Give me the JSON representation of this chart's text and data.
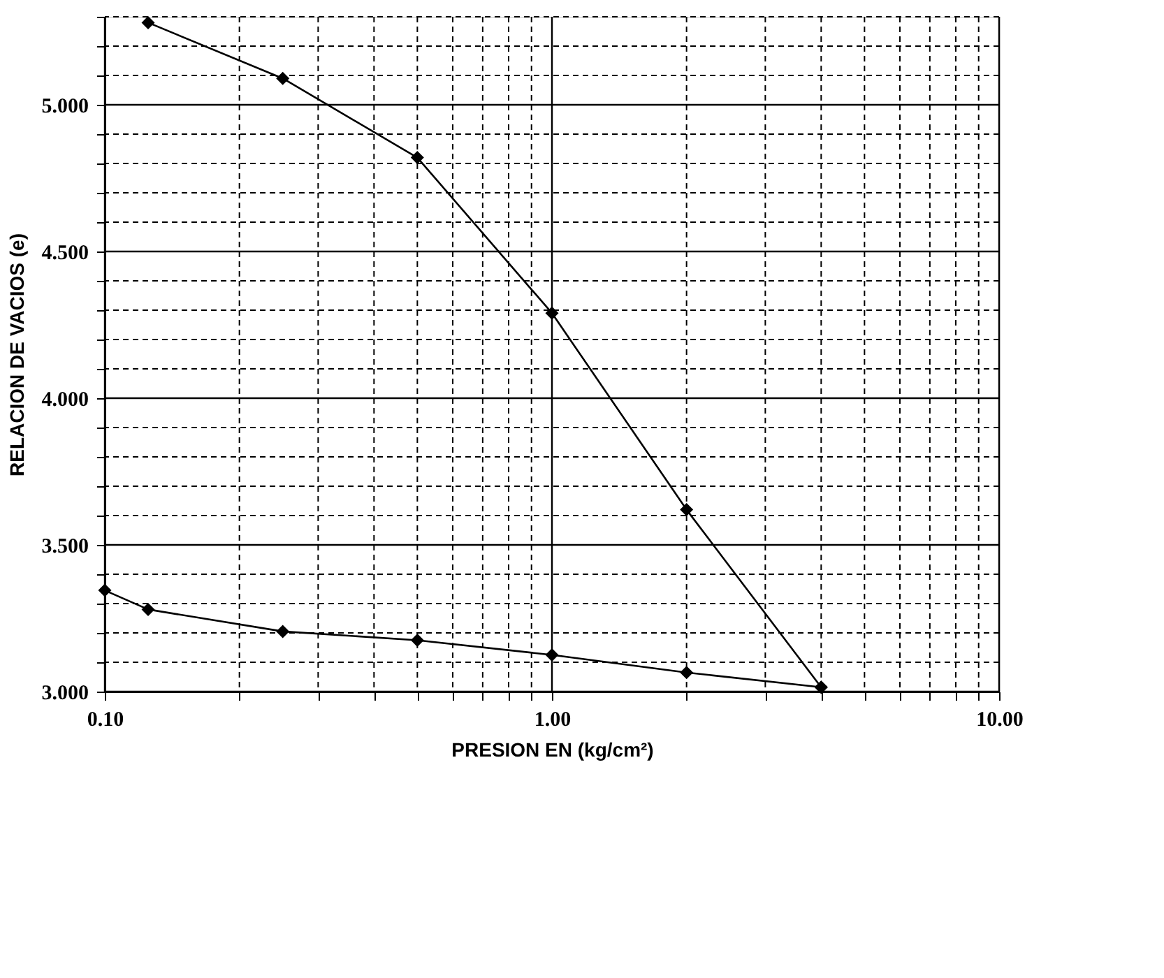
{
  "chart_data": {
    "type": "line",
    "xlabel": "PRESION EN (kg/cm²)",
    "ylabel": "RELACION DE VACIOS (e)",
    "log": "x",
    "marker": "diamond",
    "line_style": "solid",
    "grid": true,
    "xlim": [
      0.1,
      10
    ],
    "ylim": [
      3.0,
      5.3
    ],
    "xticks": [
      {
        "value": 0.1,
        "label": "0.10"
      },
      {
        "value": 0.2,
        "label": null
      },
      {
        "value": 0.3,
        "label": null
      },
      {
        "value": 0.4,
        "label": null
      },
      {
        "value": 0.5,
        "label": null
      },
      {
        "value": 0.6,
        "label": null
      },
      {
        "value": 0.7,
        "label": null
      },
      {
        "value": 0.8,
        "label": null
      },
      {
        "value": 0.9,
        "label": null
      },
      {
        "value": 1,
        "label": "1.00"
      },
      {
        "value": 2,
        "label": null
      },
      {
        "value": 3,
        "label": null
      },
      {
        "value": 4,
        "label": null
      },
      {
        "value": 5,
        "label": null
      },
      {
        "value": 6,
        "label": null
      },
      {
        "value": 7,
        "label": null
      },
      {
        "value": 8,
        "label": null
      },
      {
        "value": 9,
        "label": null
      },
      {
        "value": 10,
        "label": "10.00"
      }
    ],
    "yticks": [
      {
        "value": 3.0,
        "label": "3.000"
      },
      {
        "value": 3.1,
        "label": null
      },
      {
        "value": 3.2,
        "label": null
      },
      {
        "value": 3.3,
        "label": null
      },
      {
        "value": 3.4,
        "label": null
      },
      {
        "value": 3.5,
        "label": "3.500"
      },
      {
        "value": 3.6,
        "label": null
      },
      {
        "value": 3.7,
        "label": null
      },
      {
        "value": 3.8,
        "label": null
      },
      {
        "value": 3.9,
        "label": null
      },
      {
        "value": 4.0,
        "label": "4.000"
      },
      {
        "value": 4.1,
        "label": null
      },
      {
        "value": 4.2,
        "label": null
      },
      {
        "value": 4.3,
        "label": null
      },
      {
        "value": 4.4,
        "label": null
      },
      {
        "value": 4.5,
        "label": "4.500"
      },
      {
        "value": 4.6,
        "label": null
      },
      {
        "value": 4.7,
        "label": null
      },
      {
        "value": 4.8,
        "label": null
      },
      {
        "value": 4.9,
        "label": null
      },
      {
        "value": 5.0,
        "label": "5.000"
      },
      {
        "value": 5.1,
        "label": null
      },
      {
        "value": 5.2,
        "label": null
      },
      {
        "value": 5.3,
        "label": null
      }
    ],
    "series": [
      {
        "color": "#000000",
        "x": [
          0.125,
          0.25,
          0.5,
          1,
          2,
          4
        ],
        "values": [
          5.28,
          5.09,
          4.82,
          4.29,
          3.62,
          3.015
        ]
      },
      {
        "color": "#000000",
        "x": [
          4,
          2,
          1,
          0.5,
          0.25,
          0.125,
          0.1
        ],
        "values": [
          3.015,
          3.065,
          3.125,
          3.175,
          3.205,
          3.28,
          3.345
        ]
      }
    ]
  }
}
